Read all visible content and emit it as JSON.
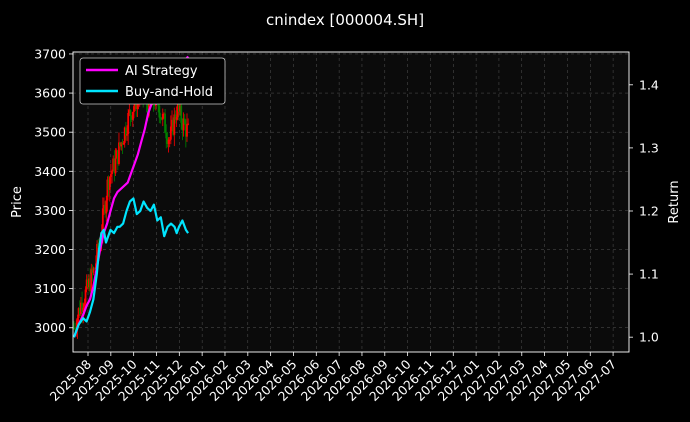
{
  "chart_data": {
    "type": "line",
    "title": "cnindex [000004.SH]",
    "ylabel": "Price",
    "y2label": "Return",
    "ylim": [
      2938,
      3705
    ],
    "y2lim": [
      0.9765,
      1.452
    ],
    "y_ticks": [
      3000,
      3100,
      3200,
      3300,
      3400,
      3500,
      3600,
      3700
    ],
    "y2_ticks": [
      1.0,
      1.1,
      1.2,
      1.3,
      1.4
    ],
    "x_tick_labels": [
      "2025-08",
      "2025-09",
      "2025-10",
      "2025-11",
      "2025-12",
      "2026-01",
      "2026-02",
      "2026-03",
      "2026-04",
      "2026-05",
      "2026-06",
      "2026-07",
      "2026-08",
      "2026-09",
      "2026-10",
      "2026-11",
      "2026-12",
      "2027-01",
      "2027-02",
      "2027-03",
      "2027-04",
      "2027-05",
      "2027-06",
      "2027-07"
    ],
    "grid": true,
    "legend_position": "top-left",
    "background": "#000000",
    "candles_color_up": "#ff0000",
    "candles_color_down": "#008000",
    "candles": {
      "name": "Price",
      "anchors": [
        {
          "month": 0.0,
          "price": 3000
        },
        {
          "month": 0.3,
          "price": 3060
        },
        {
          "month": 0.6,
          "price": 3100
        },
        {
          "month": 0.9,
          "price": 3150
        },
        {
          "month": 1.2,
          "price": 3250
        },
        {
          "month": 1.5,
          "price": 3380
        },
        {
          "month": 1.8,
          "price": 3420
        },
        {
          "month": 2.1,
          "price": 3480
        },
        {
          "month": 2.4,
          "price": 3540
        },
        {
          "month": 2.7,
          "price": 3580
        },
        {
          "month": 3.0,
          "price": 3600
        },
        {
          "month": 3.3,
          "price": 3560
        },
        {
          "month": 3.6,
          "price": 3590
        },
        {
          "month": 3.9,
          "price": 3530
        },
        {
          "month": 4.2,
          "price": 3480
        },
        {
          "month": 4.5,
          "price": 3560
        },
        {
          "month": 4.8,
          "price": 3520
        },
        {
          "month": 5.0,
          "price": 3500
        }
      ]
    },
    "series": [
      {
        "name": "AI Strategy",
        "color": "#ff00ff",
        "axis": "right",
        "x": [
          0.0,
          0.2,
          0.4,
          0.55,
          0.7,
          0.85,
          1.0,
          1.15,
          1.3,
          1.45,
          1.6,
          1.75,
          1.9,
          2.05,
          2.2,
          2.35,
          2.5,
          2.65,
          2.8,
          2.95,
          3.1,
          3.25,
          3.4,
          3.5,
          3.6,
          3.75,
          3.9,
          4.0,
          4.15,
          4.3,
          4.45,
          4.6,
          4.75,
          4.9,
          5.0
        ],
        "values": [
          1.0,
          1.02,
          1.035,
          1.05,
          1.06,
          1.08,
          1.11,
          1.14,
          1.165,
          1.18,
          1.2,
          1.22,
          1.23,
          1.235,
          1.24,
          1.245,
          1.26,
          1.275,
          1.29,
          1.31,
          1.33,
          1.355,
          1.37,
          1.375,
          1.37,
          1.39,
          1.405,
          1.395,
          1.41,
          1.415,
          1.405,
          1.42,
          1.43,
          1.44,
          1.445
        ]
      },
      {
        "name": "Buy-and-Hold",
        "color": "#00e5ff",
        "axis": "right",
        "x": [
          0.0,
          0.2,
          0.4,
          0.55,
          0.7,
          0.85,
          1.0,
          1.1,
          1.2,
          1.3,
          1.4,
          1.5,
          1.6,
          1.75,
          1.9,
          2.0,
          2.15,
          2.3,
          2.45,
          2.6,
          2.75,
          2.9,
          3.05,
          3.2,
          3.35,
          3.5,
          3.65,
          3.8,
          3.95,
          4.1,
          4.25,
          4.4,
          4.5,
          4.6,
          4.75,
          4.9,
          5.0
        ],
        "values": [
          1.0,
          1.02,
          1.03,
          1.025,
          1.04,
          1.06,
          1.1,
          1.14,
          1.165,
          1.17,
          1.15,
          1.16,
          1.17,
          1.165,
          1.175,
          1.175,
          1.18,
          1.2,
          1.215,
          1.22,
          1.195,
          1.2,
          1.215,
          1.205,
          1.2,
          1.21,
          1.185,
          1.19,
          1.16,
          1.175,
          1.18,
          1.175,
          1.165,
          1.175,
          1.185,
          1.17,
          1.165
        ]
      }
    ]
  }
}
